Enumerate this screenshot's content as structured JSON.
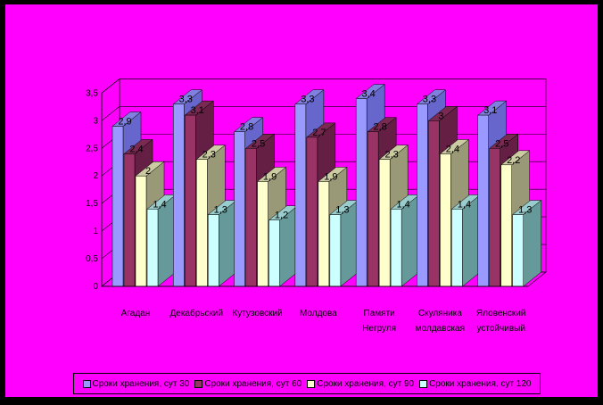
{
  "chart_data": {
    "type": "bar",
    "subtype": "3d-clustered-column",
    "categories": [
      "Агадан",
      "Декабрьский",
      "Кутузовский",
      "Молдова",
      "Памяти Негруля",
      "Скуляника молдавская",
      "Яловенский устойчивый"
    ],
    "category_labels": [
      [
        "Агадан"
      ],
      [
        "Декабрьский"
      ],
      [
        "Кутузовский"
      ],
      [
        "Молдова"
      ],
      [
        "Памяти",
        "Негруля"
      ],
      [
        "Скуляника",
        "молдавская"
      ],
      [
        "Яловенский",
        "устойчивый"
      ]
    ],
    "series": [
      {
        "name": "Сроки хранения, сут 30",
        "color": "#9999ff",
        "top": "#8080e0",
        "side": "#6666cc",
        "values": [
          2.9,
          3.3,
          2.8,
          3.3,
          3.4,
          3.3,
          3.1
        ],
        "labels": [
          "2,9",
          "3,3",
          "2,8",
          "3,3",
          "3,4",
          "3,3",
          "3,1"
        ]
      },
      {
        "name": "Сроки хранения, сут 60",
        "color": "#993366",
        "top": "#7a2952",
        "side": "#661f44",
        "values": [
          2.4,
          3.1,
          2.5,
          2.7,
          2.8,
          3.0,
          2.5
        ],
        "labels": [
          "2,4",
          "3,1",
          "2,5",
          "2,7",
          "2,8",
          "3",
          "2,5"
        ]
      },
      {
        "name": "Сроки хранения, сут 90",
        "color": "#ffffcc",
        "top": "#cccca3",
        "side": "#999977",
        "values": [
          2.0,
          2.3,
          1.9,
          1.9,
          2.3,
          2.4,
          2.2
        ],
        "labels": [
          "2",
          "2,3",
          "1,9",
          "1,9",
          "2,3",
          "2,4",
          "2,2"
        ]
      },
      {
        "name": "Сроки хранения, сут 120",
        "color": "#ccffff",
        "top": "#99cccc",
        "side": "#669999",
        "values": [
          1.4,
          1.3,
          1.2,
          1.3,
          1.4,
          1.4,
          1.3
        ],
        "labels": [
          "1,4",
          "1,3",
          "1,2",
          "1,3",
          "1,4",
          "1,4",
          "1,3"
        ]
      }
    ],
    "y_ticks": [
      "0",
      "0,5",
      "1",
      "1,5",
      "2",
      "2,5",
      "3",
      "3,5"
    ],
    "ylim": [
      0,
      3.5
    ],
    "ylabel": "",
    "xlabel": "",
    "title": "",
    "grid": true,
    "legend_position": "bottom"
  },
  "colors": {
    "background": "#ff00ff",
    "border": "#000000",
    "wall": "#ff00ff",
    "floor": "#ff00ff"
  }
}
